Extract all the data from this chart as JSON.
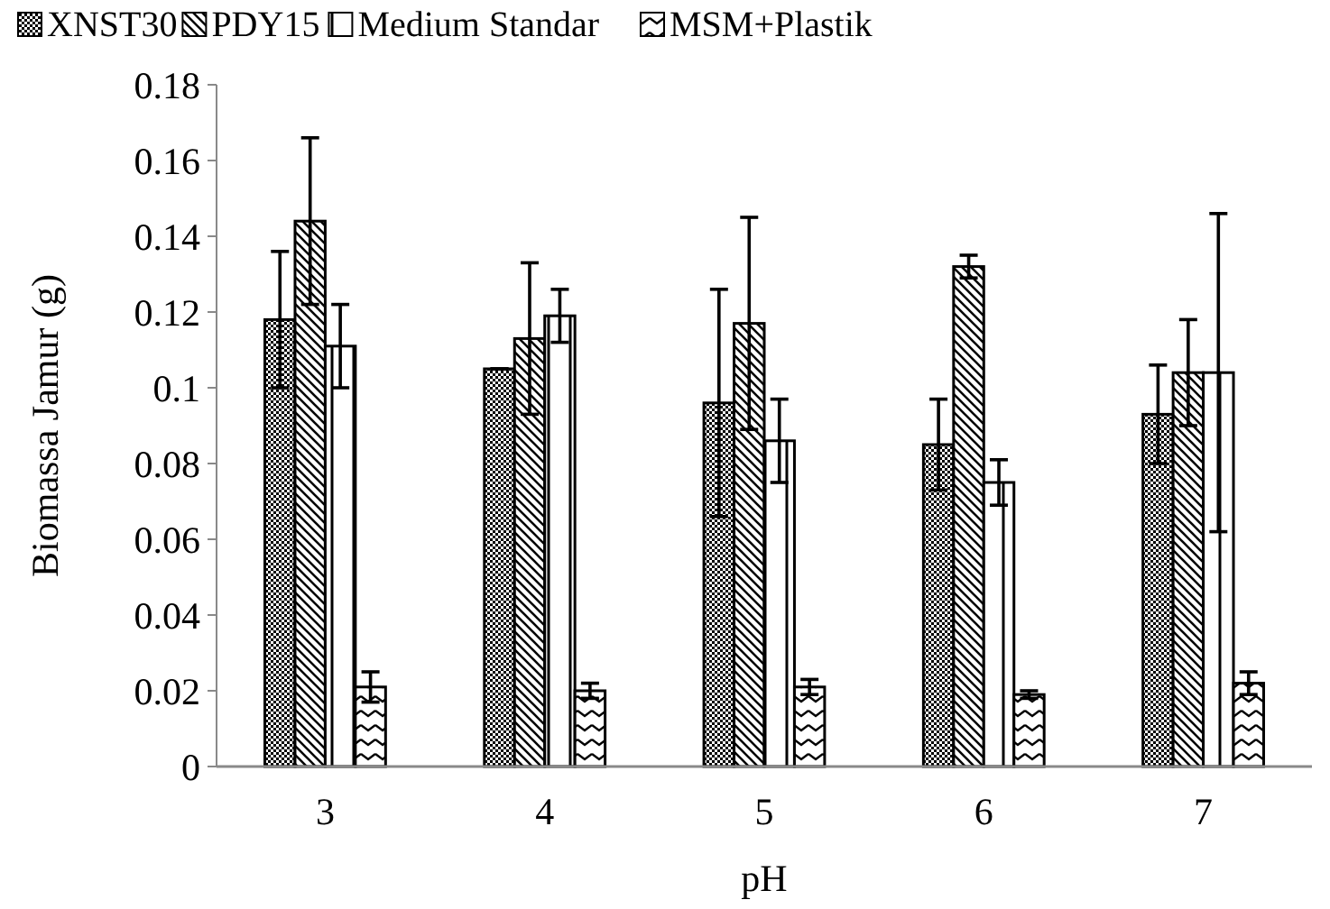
{
  "chart_data": {
    "type": "bar",
    "xlabel": "pH",
    "ylabel": "Biomassa Jamur (g)",
    "categories": [
      "3",
      "4",
      "5",
      "6",
      "7"
    ],
    "ylim": [
      0,
      0.18
    ],
    "yticks": [
      0,
      0.02,
      0.04,
      0.06,
      0.08,
      {
        "value": 0.1,
        "label": "0.1"
      },
      0.12,
      0.14,
      0.16,
      0.18
    ],
    "grid": false,
    "legend": "top",
    "series": [
      {
        "name": "XNST30",
        "color": "#000000",
        "values": [
          0.118,
          0.105,
          0.096,
          0.085,
          0.093
        ],
        "errors": [
          0.018,
          0,
          0.03,
          0.012,
          0.013
        ]
      },
      {
        "name": "PDY15",
        "color": "#000000",
        "values": [
          0.144,
          0.113,
          0.117,
          0.132,
          0.104
        ],
        "errors": [
          0.022,
          0.02,
          0.028,
          0.003,
          0.014
        ]
      },
      {
        "name": "Medium Standar",
        "color": "#000000",
        "values": [
          0.111,
          0.119,
          0.086,
          0.075,
          0.104
        ],
        "errors": [
          0.011,
          0.007,
          0.011,
          0.006,
          0.042
        ]
      },
      {
        "name": "MSM+Plastik",
        "color": "#000000",
        "values": [
          0.021,
          0.02,
          0.021,
          0.019,
          0.022
        ],
        "errors": [
          0.004,
          0.002,
          0.002,
          0.001,
          0.003
        ]
      }
    ]
  }
}
